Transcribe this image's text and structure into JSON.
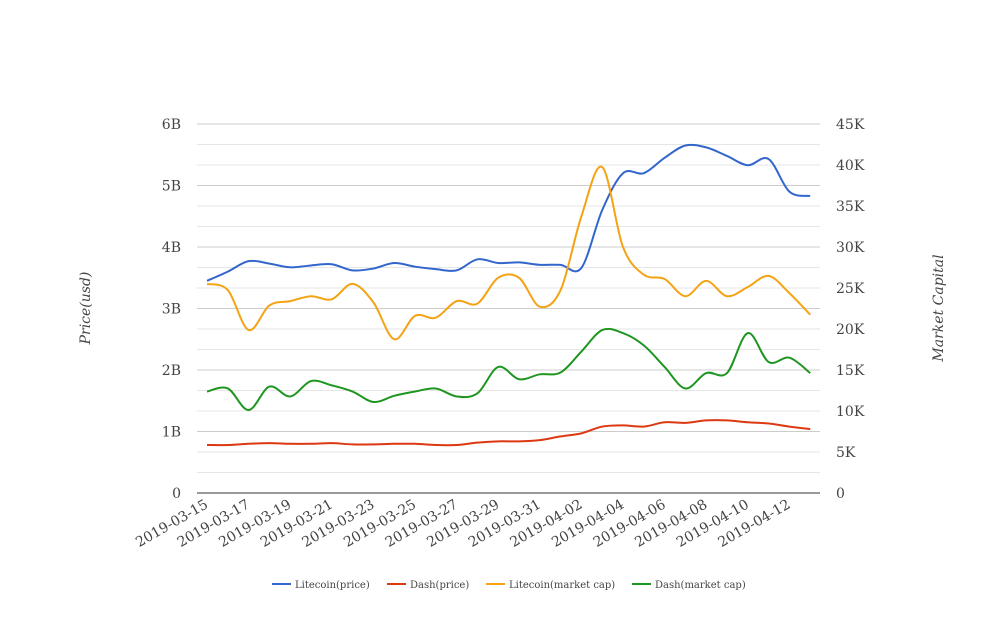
{
  "chart_data": {
    "type": "line",
    "title": "",
    "xlabel": "",
    "ylabel": "Price(usd)",
    "y2label": "Market Capital",
    "ylim": [
      0,
      6
    ],
    "y2lim": [
      0,
      45
    ],
    "y_ticks": [
      "0",
      "1B",
      "2B",
      "3B",
      "4B",
      "5B",
      "6B"
    ],
    "y2_ticks": [
      "0",
      "5K",
      "10K",
      "15K",
      "20K",
      "25K",
      "30K",
      "35K",
      "40K",
      "45K"
    ],
    "x": [
      "2019-03-15",
      "2019-03-16",
      "2019-03-17",
      "2019-03-18",
      "2019-03-19",
      "2019-03-20",
      "2019-03-21",
      "2019-03-22",
      "2019-03-23",
      "2019-03-24",
      "2019-03-25",
      "2019-03-26",
      "2019-03-27",
      "2019-03-28",
      "2019-03-29",
      "2019-03-30",
      "2019-03-31",
      "2019-04-01",
      "2019-04-02",
      "2019-04-03",
      "2019-04-04",
      "2019-04-05",
      "2019-04-06",
      "2019-04-07",
      "2019-04-08",
      "2019-04-09",
      "2019-04-10",
      "2019-04-11",
      "2019-04-12",
      "2019-04-13"
    ],
    "x_tick_labels": [
      "2019-03-15",
      "2019-03-17",
      "2019-03-19",
      "2019-03-21",
      "2019-03-23",
      "2019-03-25",
      "2019-03-27",
      "2019-03-29",
      "2019-03-31",
      "2019-04-02",
      "2019-04-04",
      "2019-04-06",
      "2019-04-08",
      "2019-04-10",
      "2019-04-12"
    ],
    "grid": true,
    "legend_position": "bottom",
    "value_units_note": "values in left-axis units (B)",
    "series": [
      {
        "name": "Litecoin(price)",
        "color": "#3366cc",
        "values": [
          3.45,
          3.6,
          3.77,
          3.73,
          3.67,
          3.7,
          3.72,
          3.62,
          3.65,
          3.74,
          3.68,
          3.64,
          3.62,
          3.8,
          3.74,
          3.75,
          3.71,
          3.71,
          3.66,
          4.6,
          5.2,
          5.2,
          5.45,
          5.65,
          5.62,
          5.48,
          5.33,
          5.43,
          4.9,
          4.83
        ]
      },
      {
        "name": "Dash(price)",
        "color": "#dc3912",
        "values": [
          0.78,
          0.78,
          0.8,
          0.81,
          0.8,
          0.8,
          0.81,
          0.79,
          0.79,
          0.8,
          0.8,
          0.78,
          0.78,
          0.82,
          0.84,
          0.84,
          0.86,
          0.92,
          0.97,
          1.08,
          1.1,
          1.08,
          1.15,
          1.14,
          1.18,
          1.18,
          1.15,
          1.13,
          1.08,
          1.04
        ]
      },
      {
        "name": "Litecoin(market cap)",
        "color": "#f4a314",
        "values": [
          3.4,
          3.3,
          2.65,
          3.05,
          3.12,
          3.2,
          3.15,
          3.4,
          3.1,
          2.5,
          2.88,
          2.85,
          3.12,
          3.08,
          3.5,
          3.5,
          3.03,
          3.3,
          4.5,
          5.3,
          4.0,
          3.55,
          3.48,
          3.2,
          3.45,
          3.2,
          3.35,
          3.53,
          3.25,
          2.9
        ]
      },
      {
        "name": "Dash(market cap)",
        "color": "#1e9620",
        "values": [
          1.65,
          1.7,
          1.35,
          1.73,
          1.57,
          1.82,
          1.75,
          1.65,
          1.48,
          1.58,
          1.65,
          1.7,
          1.57,
          1.62,
          2.05,
          1.85,
          1.93,
          1.96,
          2.3,
          2.65,
          2.6,
          2.4,
          2.05,
          1.7,
          1.95,
          1.95,
          2.6,
          2.13,
          2.2,
          1.95
        ]
      }
    ]
  }
}
